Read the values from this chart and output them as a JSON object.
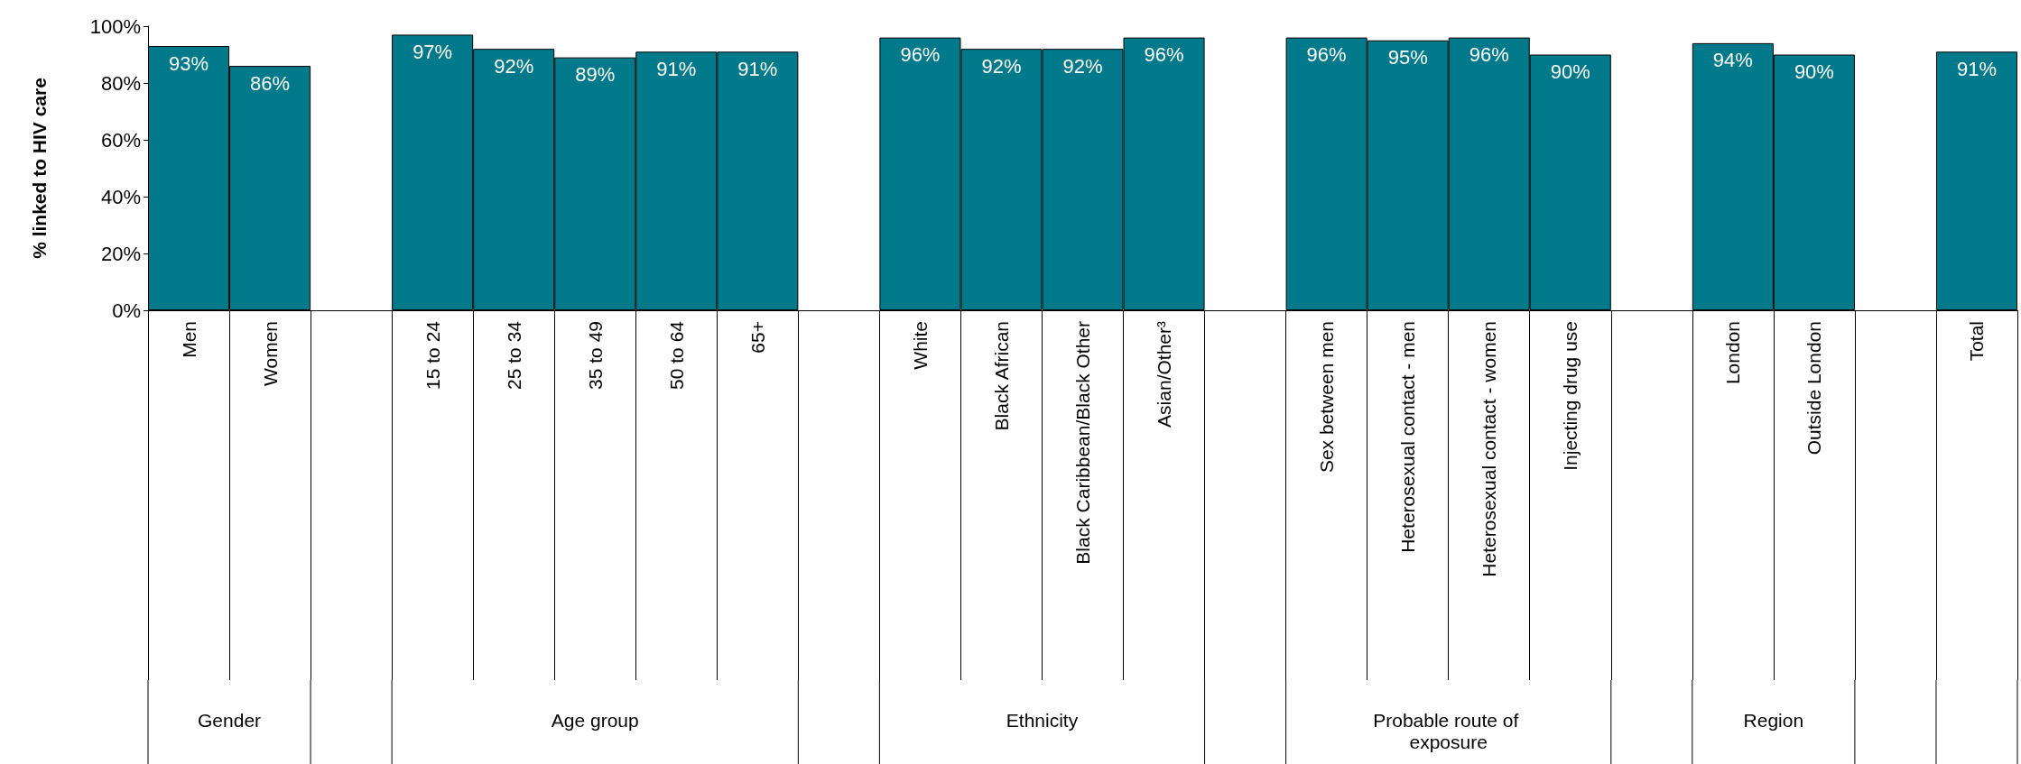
{
  "chart_data": {
    "type": "bar",
    "ylabel": "% linked to HIV care",
    "categories": [
      "Men",
      "Women",
      null,
      "15 to 24",
      "25 to 34",
      "35 to 49",
      "50 to 64",
      "65+",
      null,
      "White",
      "Black African",
      "Black Caribbean/Black Other",
      "Asian/Other³",
      null,
      "Sex between men",
      "Heterosexual contact - men",
      "Heterosexual contact - women",
      "Injecting drug use",
      null,
      "London",
      "Outside London",
      null,
      "Total"
    ],
    "values": [
      93,
      86,
      null,
      97,
      92,
      89,
      91,
      91,
      null,
      96,
      92,
      92,
      96,
      null,
      96,
      95,
      96,
      90,
      null,
      94,
      90,
      null,
      91
    ],
    "value_labels": [
      "93%",
      "86%",
      null,
      "97%",
      "92%",
      "89%",
      "91%",
      "91%",
      null,
      "96%",
      "92%",
      "92%",
      "96%",
      null,
      "96%",
      "95%",
      "96%",
      "90%",
      null,
      "94%",
      "90%",
      null,
      "91%"
    ],
    "color": "#007a8b",
    "ylim": [
      0,
      100
    ],
    "yticks": [
      {
        "value": 0,
        "label": "0%"
      },
      {
        "value": 20,
        "label": "20%"
      },
      {
        "value": 40,
        "label": "40%"
      },
      {
        "value": 60,
        "label": "60%"
      },
      {
        "value": 80,
        "label": "80%"
      },
      {
        "value": 100,
        "label": "100%"
      }
    ],
    "grid": false,
    "annotations": [
      "Gender",
      "Age group",
      "Ethnicity",
      "Probable route of exposure",
      "Region"
    ]
  }
}
